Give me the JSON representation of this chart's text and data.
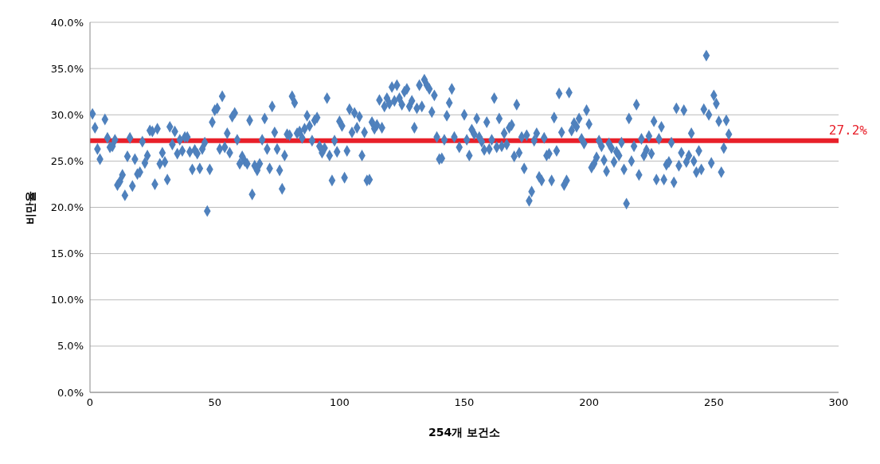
{
  "chart_data": {
    "type": "scatter",
    "xlabel": "254개 보건소",
    "ylabel": "비만율",
    "x": [
      1,
      2,
      3,
      4,
      6,
      7,
      8,
      9,
      10,
      11,
      12,
      13,
      14,
      15,
      16,
      17,
      18,
      19,
      20,
      21,
      22,
      23,
      24,
      25,
      26,
      27,
      28,
      29,
      30,
      31,
      32,
      33,
      34,
      35,
      36,
      37,
      38,
      39,
      40,
      41,
      42,
      43,
      44,
      45,
      46,
      47,
      48,
      49,
      50,
      51,
      52,
      53,
      54,
      55,
      56,
      57,
      58,
      59,
      60,
      61,
      62,
      63,
      64,
      65,
      66,
      67,
      68,
      69,
      70,
      71,
      72,
      73,
      74,
      75,
      76,
      77,
      78,
      79,
      80,
      81,
      82,
      83,
      84,
      85,
      86,
      87,
      88,
      89,
      90,
      91,
      92,
      93,
      94,
      95,
      96,
      97,
      98,
      99,
      100,
      101,
      102,
      103,
      104,
      105,
      106,
      107,
      108,
      109,
      110,
      111,
      112,
      113,
      114,
      115,
      116,
      117,
      118,
      119,
      120,
      121,
      122,
      123,
      124,
      125,
      126,
      127,
      128,
      129,
      130,
      131,
      132,
      133,
      134,
      135,
      136,
      137,
      138,
      139,
      140,
      141,
      142,
      143,
      144,
      145,
      146,
      148,
      150,
      151,
      152,
      153,
      154,
      155,
      156,
      157,
      158,
      159,
      160,
      161,
      162,
      163,
      164,
      165,
      166,
      167,
      168,
      169,
      170,
      171,
      172,
      173,
      174,
      175,
      176,
      177,
      178,
      179,
      180,
      181,
      182,
      183,
      184,
      185,
      186,
      187,
      188,
      189,
      190,
      191,
      192,
      193,
      194,
      195,
      196,
      197,
      198,
      199,
      200,
      201,
      202,
      203,
      204,
      205,
      206,
      207,
      208,
      209,
      210,
      211,
      212,
      213,
      214,
      215,
      216,
      217,
      218,
      219,
      220,
      221,
      222,
      223,
      224,
      225,
      226,
      227,
      228,
      229,
      230,
      231,
      232,
      233,
      234,
      235,
      236,
      237,
      238,
      239,
      240,
      241,
      242,
      243,
      244,
      245,
      246,
      247,
      248,
      249,
      250,
      251,
      252,
      253,
      254,
      255,
      256
    ],
    "series": [
      {
        "color": "#4f81bd",
        "values": [
          30.1,
          28.6,
          26.3,
          25.2,
          29.5,
          27.5,
          26.5,
          26.6,
          27.3,
          22.4,
          22.8,
          23.5,
          21.3,
          25.5,
          27.5,
          22.3,
          25.2,
          23.6,
          23.8,
          27.1,
          24.8,
          25.6,
          28.3,
          28.2,
          22.5,
          28.5,
          24.7,
          25.9,
          24.9,
          23.0,
          28.7,
          26.8,
          28.2,
          25.8,
          27.3,
          26.1,
          27.6,
          27.6,
          26.0,
          24.1,
          26.2,
          25.8,
          24.2,
          26.3,
          27.0,
          19.6,
          24.1,
          29.2,
          30.5,
          30.7,
          26.3,
          32.0,
          26.5,
          28.0,
          25.9,
          29.8,
          30.2,
          27.3,
          24.7,
          25.5,
          25.0,
          24.7,
          29.4,
          21.4,
          24.5,
          24.0,
          24.7,
          27.3,
          29.6,
          26.3,
          24.2,
          30.9,
          28.1,
          26.3,
          24.0,
          22.0,
          25.6,
          27.9,
          27.8,
          32.0,
          31.3,
          28.0,
          28.2,
          27.5,
          28.5,
          29.9,
          28.8,
          27.2,
          29.4,
          29.7,
          26.6,
          25.9,
          26.4,
          31.8,
          25.6,
          22.9,
          27.2,
          26.0,
          29.3,
          28.8,
          23.2,
          26.1,
          30.6,
          28.1,
          30.2,
          28.6,
          29.8,
          25.6,
          28.1,
          22.9,
          23.0,
          29.2,
          28.5,
          28.9,
          31.6,
          28.6,
          30.9,
          31.8,
          31.2,
          33.0,
          31.5,
          33.2,
          31.8,
          31.1,
          32.5,
          32.8,
          30.9,
          31.5,
          28.6,
          30.7,
          33.2,
          30.9,
          33.8,
          33.2,
          32.8,
          30.3,
          32.1,
          27.6,
          25.2,
          25.3,
          27.3,
          29.9,
          31.3,
          32.8,
          27.6,
          26.5,
          30.0,
          27.3,
          25.6,
          28.4,
          27.9,
          29.6,
          27.6,
          27.1,
          26.2,
          29.2,
          26.3,
          27.3,
          31.8,
          26.5,
          29.6,
          26.6,
          28.0,
          26.8,
          28.6,
          28.9,
          25.5,
          31.1,
          25.9,
          27.6,
          24.2,
          27.8,
          20.7,
          21.7,
          27.2,
          28.0,
          23.3,
          22.9,
          27.5,
          25.6,
          25.8,
          22.9,
          29.7,
          26.1,
          32.3,
          28.1,
          22.4,
          22.9,
          32.4,
          28.3,
          29.1,
          28.7,
          29.6,
          27.4,
          26.9,
          30.5,
          29.0,
          24.3,
          24.7,
          25.4,
          27.2,
          26.6,
          25.1,
          23.9,
          26.9,
          26.4,
          24.9,
          26.0,
          25.6,
          27.0,
          24.1,
          20.4,
          29.6,
          25.0,
          26.6,
          31.1,
          23.5,
          27.4,
          25.6,
          26.2,
          27.7,
          25.8,
          29.3,
          23.0,
          27.4,
          28.7,
          23.0,
          24.6,
          24.9,
          27.0,
          22.7,
          30.7,
          24.5,
          25.9,
          30.5,
          24.9,
          25.6,
          28.0,
          25.0,
          23.8,
          26.1,
          24.1,
          30.6,
          36.4,
          30.0,
          24.8,
          32.1,
          31.2,
          29.3,
          23.8,
          26.4,
          29.4,
          27.9
        ]
      }
    ],
    "xlim": [
      0,
      300
    ],
    "xticks": [
      0,
      50,
      100,
      150,
      200,
      250,
      300
    ],
    "ylim": [
      0,
      40
    ],
    "yticks": [
      {
        "value": 0,
        "label": "0.0%"
      },
      {
        "value": 5,
        "label": "5.0%"
      },
      {
        "value": 10,
        "label": "10.0%"
      },
      {
        "value": 15,
        "label": "15.0%"
      },
      {
        "value": 20,
        "label": "20.0%"
      },
      {
        "value": 25,
        "label": "25.0%"
      },
      {
        "value": 30,
        "label": "30.0%"
      },
      {
        "value": 35,
        "label": "35.0%"
      },
      {
        "value": 40,
        "label": "40.0%"
      }
    ],
    "ref_lines": [
      {
        "axis": "y",
        "value": 27.2,
        "label": "27.2%",
        "color": "#e8202a"
      }
    ],
    "grid": "y",
    "marker": "diamond",
    "legend": false
  }
}
